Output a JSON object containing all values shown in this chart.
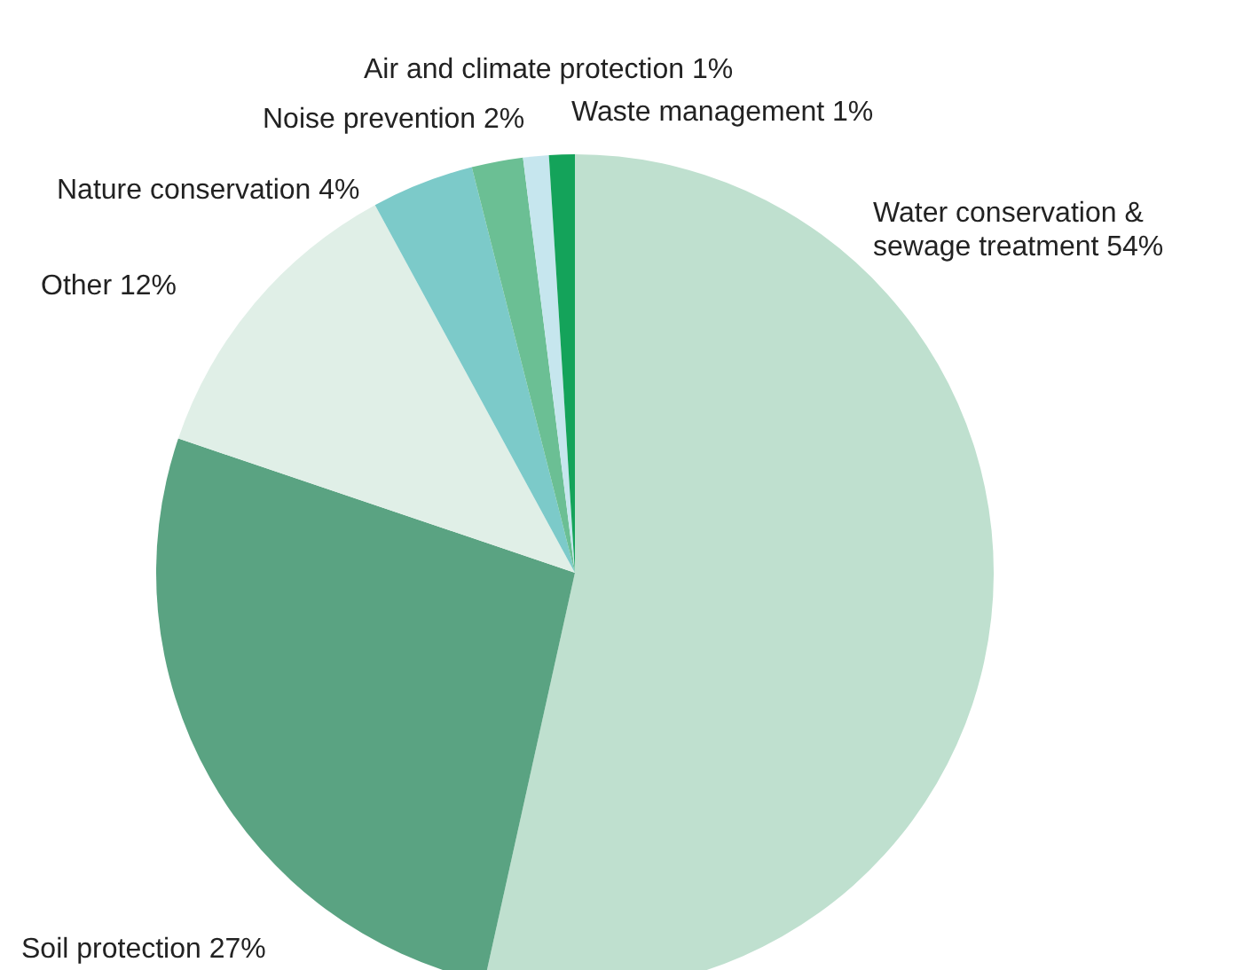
{
  "chart_data": {
    "type": "pie",
    "categories": [
      "Water conservation & sewage treatment",
      "Soil protection",
      "Other",
      "Nature conservation",
      "Noise prevention",
      "Air and climate protection",
      "Waste management"
    ],
    "values": [
      54,
      27,
      12,
      4,
      2,
      1,
      1
    ],
    "value_labels": [
      "54%",
      "27%",
      "12%",
      "4%",
      "2%",
      "1%",
      "1%"
    ],
    "colors": [
      "#bfe0cf",
      "#5aa382",
      "#e0efe7",
      "#7ccac9",
      "#6bbf94",
      "#c6e6ee",
      "#14a35a"
    ],
    "legend": false
  }
}
